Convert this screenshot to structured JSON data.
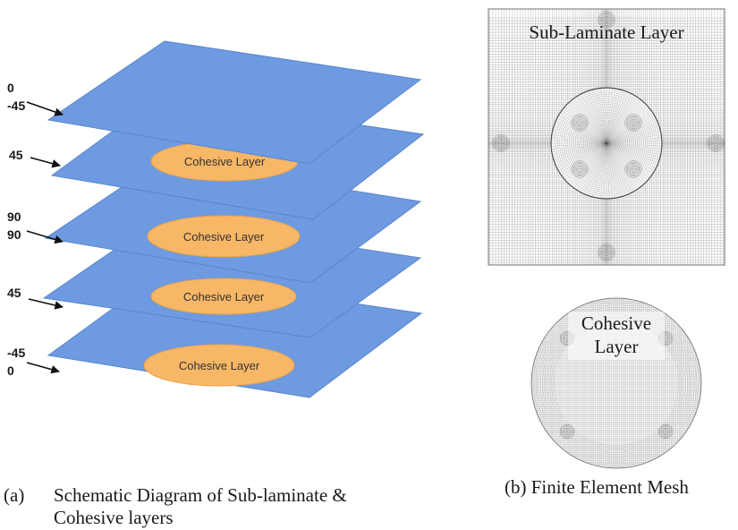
{
  "schematic": {
    "ply_labels": [
      [
        "0",
        "-45"
      ],
      [
        "45"
      ],
      [
        "90",
        "90"
      ],
      [
        "45"
      ],
      [
        "-45",
        "0"
      ]
    ],
    "cohesive_label": "Cohesive Layer",
    "cohesive_count": 4,
    "colors": {
      "plate_fill": "#6d9ae0",
      "plate_stroke": "#5a86c8",
      "cohesive_fill": "#f7b766",
      "cohesive_stroke": "#e8a24e",
      "label_text": "#333333"
    }
  },
  "mesh": {
    "sub_laminate_label": "Sub-Laminate Layer",
    "cohesive_label_line1": "Cohesive",
    "cohesive_label_line2": "Layer",
    "colors": {
      "mesh_line": "#555555",
      "frame": "#888888"
    }
  },
  "captions": {
    "a_marker": "(a)",
    "a_line1": "Schematic Diagram of Sub-laminate &",
    "a_line2": "Cohesive layers",
    "b": "(b) Finite Element Mesh"
  }
}
